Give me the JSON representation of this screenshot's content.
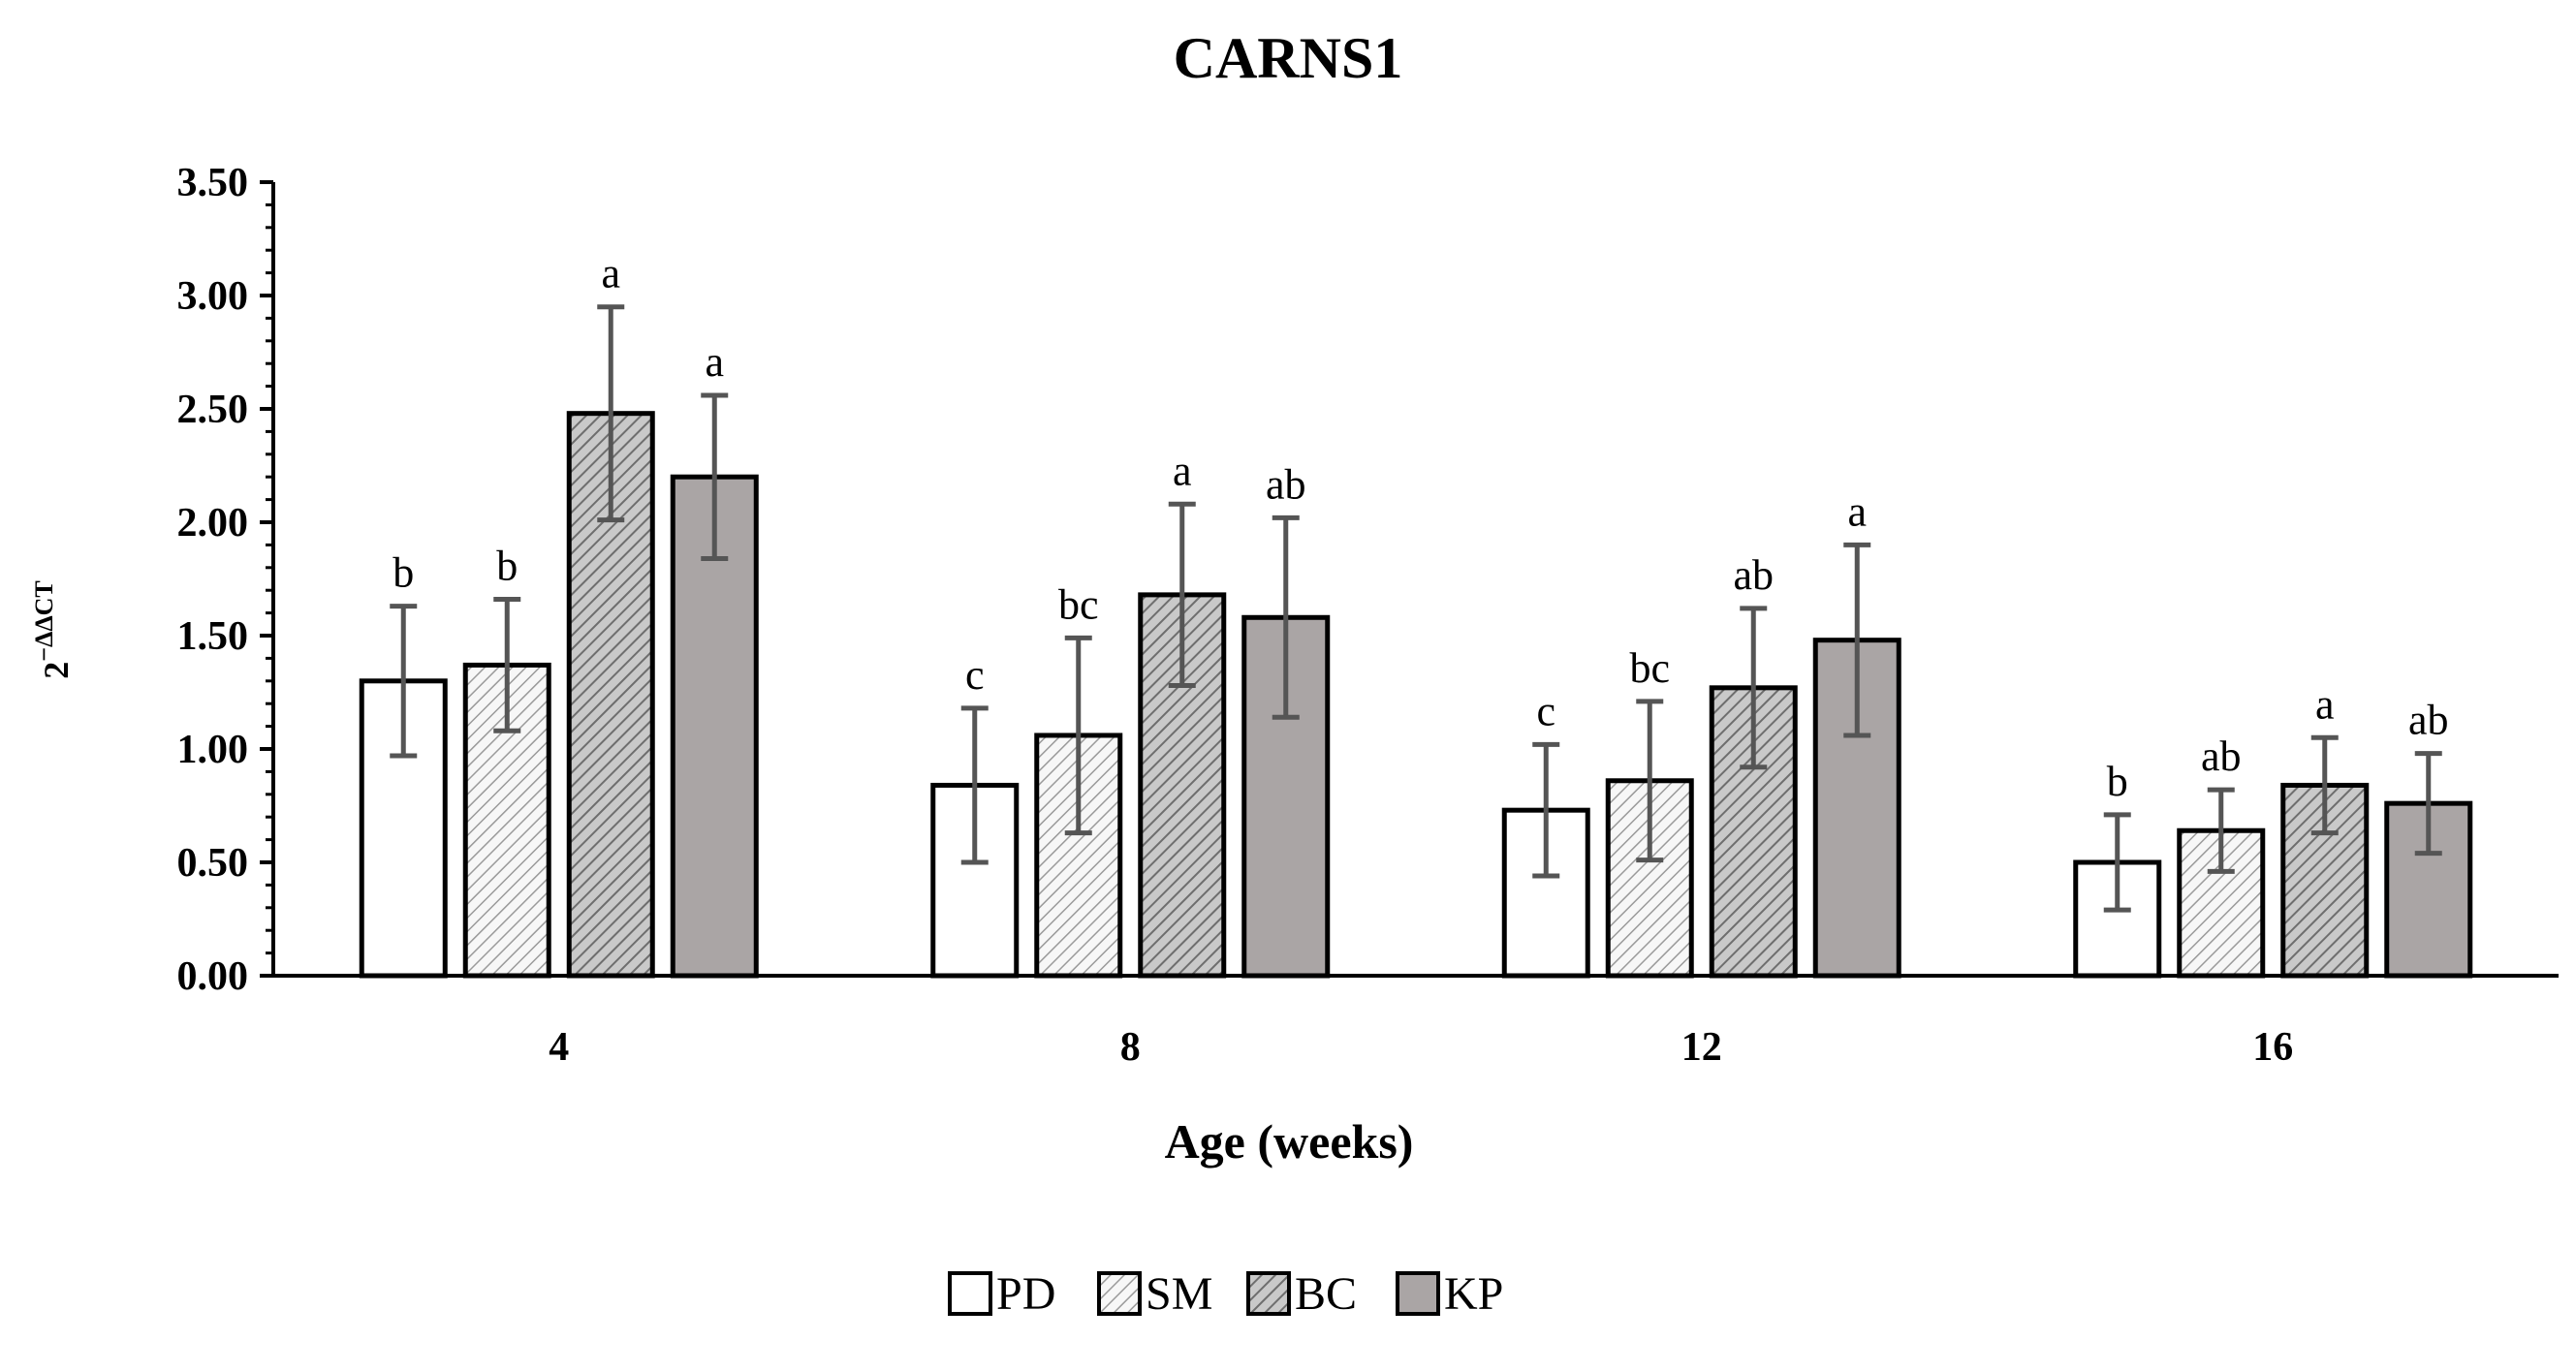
{
  "chart_data": {
    "type": "bar",
    "title": "CARNS1",
    "xlabel": "Age (weeks)",
    "ylabel": "2−ΔΔCT",
    "ylabel_base": "2",
    "ylabel_sup": "−ΔΔCT",
    "ylim": [
      0,
      3.5
    ],
    "yticks": [
      "0.00",
      "0.50",
      "1.00",
      "1.50",
      "2.00",
      "2.50",
      "3.00",
      "3.50"
    ],
    "categories": [
      "4",
      "8",
      "12",
      "16"
    ],
    "legend_position": "bottom",
    "series": [
      {
        "name": "PD",
        "pattern": "plain",
        "color": "#ffffff",
        "values": [
          1.3,
          0.84,
          0.73,
          0.5
        ],
        "errors": [
          0.33,
          0.34,
          0.29,
          0.21
        ],
        "letters": [
          "b",
          "c",
          "c",
          "b"
        ]
      },
      {
        "name": "SM",
        "pattern": "light-hatch",
        "color": "#f2f2f2",
        "values": [
          1.37,
          1.06,
          0.86,
          0.64
        ],
        "errors": [
          0.29,
          0.43,
          0.35,
          0.18
        ],
        "letters": [
          "b",
          "bc",
          "bc",
          "ab"
        ]
      },
      {
        "name": "BC",
        "pattern": "dark-hatch",
        "color": "#c4c4c4",
        "values": [
          2.48,
          1.68,
          1.27,
          0.84
        ],
        "errors": [
          0.47,
          0.4,
          0.35,
          0.21
        ],
        "letters": [
          "a",
          "a",
          "ab",
          "a"
        ]
      },
      {
        "name": "KP",
        "pattern": "solid",
        "color": "#aaa5a5",
        "values": [
          2.2,
          1.58,
          1.48,
          0.76
        ],
        "errors": [
          0.36,
          0.44,
          0.42,
          0.22
        ],
        "letters": [
          "a",
          "ab",
          "a",
          "ab"
        ]
      }
    ]
  }
}
